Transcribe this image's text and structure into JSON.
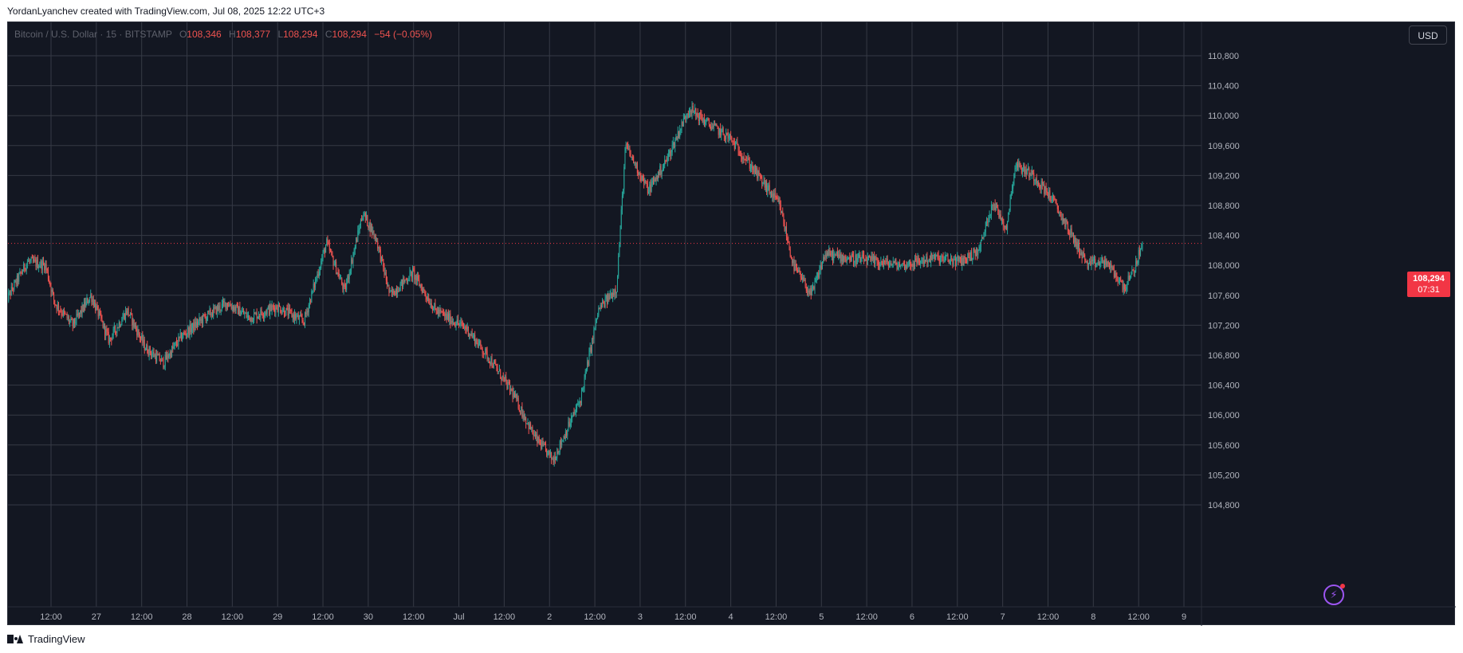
{
  "header": {
    "attribution": "YordanLyanchev created with TradingView.com, Jul 08, 2025 12:22 UTC+3"
  },
  "legend": {
    "symbol": "Bitcoin / U.S. Dollar · 15 · BITSTAMP",
    "o_label": "O",
    "o_value": "108,346",
    "h_label": "H",
    "h_value": "108,377",
    "l_label": "L",
    "l_value": "108,294",
    "c_label": "C",
    "c_value": "108,294",
    "change": "−54 (−0.05%)"
  },
  "currency_button": "USD",
  "last_price": {
    "price": "108,294",
    "countdown": "07:31"
  },
  "footer": {
    "brand": "TradingView"
  },
  "colors": {
    "background": "#131722",
    "grid": "#363a45",
    "up": "#26a69a",
    "down": "#ef5350",
    "axis_text": "#b2b5be",
    "price_tag": "#f23645"
  },
  "chart_data": {
    "type": "candlestick",
    "symbol": "BTCUSD",
    "interval": "15",
    "exchange": "BITSTAMP",
    "ylim": [
      104600,
      111100
    ],
    "y_ticks": [
      104800,
      105200,
      105600,
      106000,
      106400,
      106800,
      107200,
      107600,
      108000,
      108400,
      108800,
      109200,
      109600,
      110000,
      110400,
      110800
    ],
    "y_tick_labels": [
      "104,800",
      "105,200",
      "105,600",
      "106,000",
      "106,400",
      "106,800",
      "107,200",
      "107,600",
      "108,000",
      "108,400",
      "108,800",
      "109,200",
      "109,600",
      "110,000",
      "110,400",
      "110,800"
    ],
    "x_ticks": [
      {
        "t": 0.5,
        "label": "12:00"
      },
      {
        "t": 1.0,
        "label": "27"
      },
      {
        "t": 1.5,
        "label": "12:00"
      },
      {
        "t": 2.0,
        "label": "28"
      },
      {
        "t": 2.5,
        "label": "12:00"
      },
      {
        "t": 3.0,
        "label": "29"
      },
      {
        "t": 3.5,
        "label": "12:00"
      },
      {
        "t": 4.0,
        "label": "30"
      },
      {
        "t": 4.5,
        "label": "12:00"
      },
      {
        "t": 5.0,
        "label": "Jul"
      },
      {
        "t": 5.5,
        "label": "12:00"
      },
      {
        "t": 6.0,
        "label": "2"
      },
      {
        "t": 6.5,
        "label": "12:00"
      },
      {
        "t": 7.0,
        "label": "3"
      },
      {
        "t": 7.5,
        "label": "12:00"
      },
      {
        "t": 8.0,
        "label": "4"
      },
      {
        "t": 8.5,
        "label": "12:00"
      },
      {
        "t": 9.0,
        "label": "5"
      },
      {
        "t": 9.5,
        "label": "12:00"
      },
      {
        "t": 10.0,
        "label": "6"
      },
      {
        "t": 10.5,
        "label": "12:00"
      },
      {
        "t": 11.0,
        "label": "7"
      },
      {
        "t": 11.5,
        "label": "12:00"
      },
      {
        "t": 12.0,
        "label": "8"
      },
      {
        "t": 12.5,
        "label": "12:00"
      },
      {
        "t": 13.0,
        "label": "9"
      }
    ],
    "last_price": 108294,
    "path_keypoints": [
      [
        0.0,
        107500
      ],
      [
        0.25,
        108050
      ],
      [
        0.45,
        108000
      ],
      [
        0.55,
        107500
      ],
      [
        0.75,
        107200
      ],
      [
        0.95,
        107600
      ],
      [
        1.15,
        107000
      ],
      [
        1.35,
        107400
      ],
      [
        1.55,
        106900
      ],
      [
        1.75,
        106700
      ],
      [
        1.95,
        107050
      ],
      [
        2.2,
        107300
      ],
      [
        2.45,
        107500
      ],
      [
        2.7,
        107300
      ],
      [
        3.0,
        107450
      ],
      [
        3.3,
        107250
      ],
      [
        3.55,
        108300
      ],
      [
        3.75,
        107650
      ],
      [
        3.95,
        108700
      ],
      [
        4.1,
        108350
      ],
      [
        4.25,
        107600
      ],
      [
        4.5,
        107900
      ],
      [
        4.75,
        107400
      ],
      [
        5.1,
        107150
      ],
      [
        5.35,
        106750
      ],
      [
        5.6,
        106300
      ],
      [
        5.85,
        105700
      ],
      [
        6.05,
        105400
      ],
      [
        6.35,
        106200
      ],
      [
        6.55,
        107400
      ],
      [
        6.75,
        107700
      ],
      [
        6.85,
        109600
      ],
      [
        7.1,
        109000
      ],
      [
        7.3,
        109400
      ],
      [
        7.55,
        110100
      ],
      [
        7.75,
        109900
      ],
      [
        8.0,
        109700
      ],
      [
        8.25,
        109300
      ],
      [
        8.55,
        108800
      ],
      [
        8.7,
        108000
      ],
      [
        8.9,
        107600
      ],
      [
        9.05,
        108150
      ],
      [
        9.3,
        108100
      ],
      [
        9.6,
        108050
      ],
      [
        9.9,
        108000
      ],
      [
        10.25,
        108100
      ],
      [
        10.55,
        108050
      ],
      [
        10.75,
        108200
      ],
      [
        10.9,
        108850
      ],
      [
        11.05,
        108500
      ],
      [
        11.15,
        109350
      ],
      [
        11.35,
        109200
      ],
      [
        11.55,
        108900
      ],
      [
        11.75,
        108450
      ],
      [
        11.95,
        108000
      ],
      [
        12.15,
        108050
      ],
      [
        12.35,
        107700
      ],
      [
        12.45,
        107900
      ],
      [
        12.55,
        108294
      ]
    ]
  }
}
